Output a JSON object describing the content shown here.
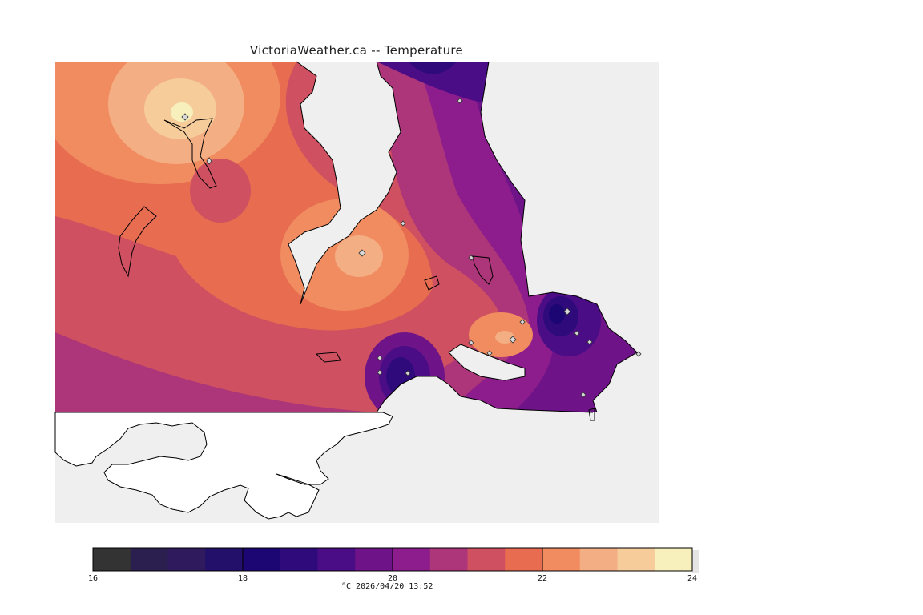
{
  "title": "VictoriaWeather.ca -- Temperature",
  "colorbar": {
    "min": 16,
    "max": 24,
    "tick_labels": [
      "16",
      "18",
      "20",
      "22",
      "24"
    ],
    "tick_values": [
      16,
      18,
      20,
      22,
      24
    ],
    "colors": [
      "#333333",
      "#2b1f4f",
      "#2e1a5c",
      "#22106a",
      "#1c0673",
      "#2e0a7a",
      "#4a0d85",
      "#6e1488",
      "#8d1c8c",
      "#ad3579",
      "#cf5060",
      "#e86c50",
      "#f08c60",
      "#f4ae84",
      "#f6cc9a",
      "#f7f0bc"
    ]
  },
  "caption": "°C  2026/04/20 13:52",
  "map": {
    "background": "#efefef",
    "station_count": 18
  }
}
